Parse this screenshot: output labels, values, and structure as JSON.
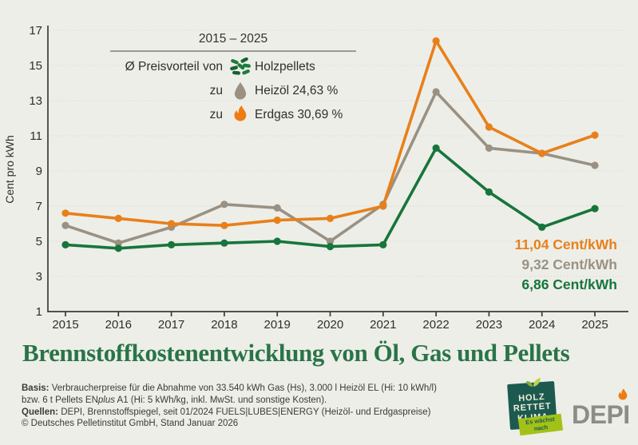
{
  "title": "Brennstoffkostenentwicklung von Öl, Gas und Pellets",
  "chart": {
    "ylabel": "Cent pro kWh",
    "legend": {
      "period": "2015 – 2025",
      "rows": [
        {
          "prefix": "Ø Preisvorteil von",
          "icon": "holzpellets-icon",
          "label": "Holzpellets"
        },
        {
          "prefix": "zu",
          "icon": "heizoel-drop-icon",
          "label": "Heizöl 24,63 %"
        },
        {
          "prefix": "zu",
          "icon": "erdgas-flame-icon",
          "label": "Erdgas 30,69 %"
        }
      ]
    },
    "end_labels": [
      {
        "text": "11,04 Cent/kWh",
        "series": "Erdgas"
      },
      {
        "text": "9,32 Cent/kWh",
        "series": "Heizöl"
      },
      {
        "text": "6,86 Cent/kWh",
        "series": "Holzpellets"
      }
    ]
  },
  "chart_data": {
    "type": "line",
    "x": [
      2015,
      2016,
      2017,
      2018,
      2019,
      2020,
      2021,
      2022,
      2023,
      2024,
      2025
    ],
    "series": [
      {
        "name": "Heizöl",
        "color": "#9a9183",
        "values": [
          5.9,
          4.9,
          5.8,
          7.1,
          6.9,
          5.0,
          7.1,
          13.5,
          10.3,
          10.0,
          9.32
        ]
      },
      {
        "name": "Erdgas",
        "color": "#e8801a",
        "values": [
          6.6,
          6.3,
          6.0,
          5.9,
          6.2,
          6.3,
          7.0,
          16.4,
          11.5,
          10.0,
          11.04
        ]
      },
      {
        "name": "Holzpellets",
        "color": "#17753c",
        "values": [
          4.8,
          4.6,
          4.8,
          4.9,
          5.0,
          4.7,
          4.8,
          10.3,
          7.8,
          5.8,
          6.86
        ]
      }
    ],
    "title": "Brennstoffkostenentwicklung von Öl, Gas und Pellets",
    "xlabel": "",
    "ylabel": "Cent pro kWh",
    "ylim": [
      1,
      17
    ],
    "yticks": [
      1,
      3,
      5,
      7,
      9,
      11,
      13,
      15,
      17
    ],
    "grid": true,
    "legend_position": "top-left",
    "annotations": {
      "period": "2015 – 2025",
      "avg_advantage_pellets_vs_heizoel": "24,63 %",
      "avg_advantage_pellets_vs_erdgas": "30,69 %",
      "final_values": [
        "11,04 Cent/kWh",
        "9,32 Cent/kWh",
        "6,86 Cent/kWh"
      ]
    }
  },
  "footer": {
    "basis_label": "Basis:",
    "basis_line1": "Verbraucherpreise für die Abnahme von 33.540 kWh Gas (Hs), 3.000 l Heizöl EL (Hi: 10 kWh/l)",
    "basis_line2_pre": "bzw. 6 t Pellets EN",
    "basis_line2_italic": "plus",
    "basis_line2_post": " A1 (Hi: 5 kWh/kg, inkl. MwSt. und sonstige Kosten).",
    "quellen_label": "Quellen:",
    "quellen_text": "DEPI, Brennstoffspiegel, seit 01/2024 FUELS|LUBES|ENERGY (Heizöl- und Erdgaspreise)",
    "copyright": "© Deutsches Pelletinstitut GmbH, Stand Januar 2026"
  },
  "logos": {
    "hrk_line1": "HOLZ",
    "hrk_line2": "RETTET",
    "hrk_line3": "KLIMA",
    "hrk_banner": "Es wächst nach",
    "depi": "DEPI"
  },
  "colors": {
    "background": "#edeee8",
    "title_green": "#2a7448",
    "erdgas_orange": "#e8801a",
    "heizoel_gray": "#9a9183",
    "pellets_green": "#17753c",
    "axis": "#3b3b38",
    "grid": "#dbdbd2",
    "badge_teal": "#1c5a50",
    "badge_banner_green": "#a2c217",
    "depi_gray": "#8d8c86"
  }
}
